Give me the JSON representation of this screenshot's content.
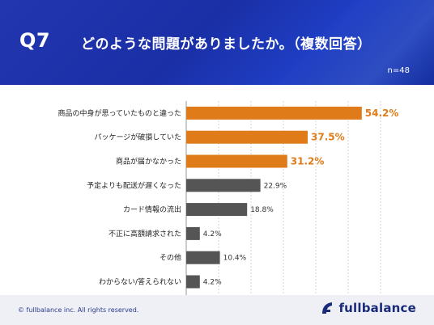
{
  "header": {
    "question_number": "Q7",
    "question_text": "どのような問題がありましたか。（複数回答）",
    "sample_size": "n=48"
  },
  "colors": {
    "header_bg": "#1a2fa6",
    "highlight_bar": "#e07b1a",
    "default_bar": "#555555"
  },
  "chart_data": {
    "type": "bar",
    "orientation": "horizontal",
    "categories": [
      "商品の中身が思っていたものと違った",
      "パッケージが破損していた",
      "商品が届かなかった",
      "予定よりも配送が遅くなった",
      "カード情報の流出",
      "不正に高額請求された",
      "その他",
      "わからない/答えられない"
    ],
    "values": [
      54.2,
      37.5,
      31.2,
      22.9,
      18.8,
      4.2,
      10.4,
      4.2
    ],
    "value_labels": [
      "54.2%",
      "37.5%",
      "31.2%",
      "22.9%",
      "18.8%",
      "4.2%",
      "10.4%",
      "4.2%"
    ],
    "highlighted": [
      true,
      true,
      true,
      false,
      false,
      false,
      false,
      false
    ],
    "xlim": [
      0,
      60
    ],
    "grid": "vertical dashed",
    "xlabel": "",
    "ylabel": ""
  },
  "footer": {
    "copyright": "© fullbalance inc. All rights reserved.",
    "logo_text": "fullbalance",
    "logo_icon": "fullbalance-logo-icon"
  }
}
